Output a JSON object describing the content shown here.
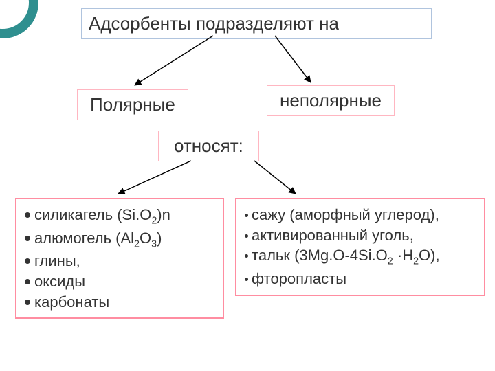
{
  "title": "Адсорбенты подразделяют на",
  "categories": {
    "polar": "Полярные",
    "nonpolar": "неполярные"
  },
  "related": "относят:",
  "leftList": [
    "силикагель (Si.O<sub>2</sub>)n",
    "алюмогель (Al<sub>2</sub>O<sub>3</sub>)",
    "глины,",
    "оксиды",
    "карбонаты"
  ],
  "rightList": [
    "сажу (аморфный углерод),",
    "активированный уголь,",
    "тальк (3Mg.O-4Si.O<sub>2</sub> ·H<sub>2</sub>O),",
    "фторопласты"
  ],
  "style": {
    "type": "flowchart",
    "background_color": "#ffffff",
    "title_border_color": "#b0c4de",
    "cat_border_color": "#ffb6c1",
    "list_border_color": "#ff8da1",
    "arrow_color": "#000000",
    "ring_color": "#2f8f8f",
    "title_fontsize": 26,
    "cat_fontsize": 26,
    "list_fontsize": 22,
    "left_bullet": "big",
    "right_bullet": "small",
    "arrows": [
      {
        "from": [
          310,
          52
        ],
        "to": [
          196,
          124
        ]
      },
      {
        "from": [
          400,
          52
        ],
        "to": [
          452,
          120
        ]
      },
      {
        "from": [
          278,
          234
        ],
        "to": [
          172,
          282
        ]
      },
      {
        "from": [
          370,
          234
        ],
        "to": [
          430,
          282
        ]
      }
    ]
  }
}
